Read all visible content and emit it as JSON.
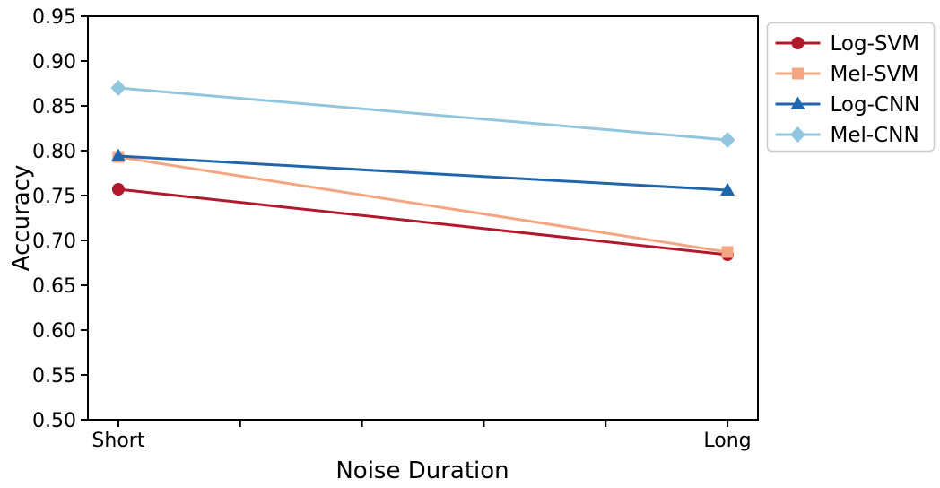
{
  "chart_data": {
    "type": "line",
    "title": "",
    "xlabel": "Noise Duration",
    "ylabel": "Accuracy",
    "categories": [
      "Short",
      "Long"
    ],
    "x_positions": [
      0,
      1
    ],
    "xlim": [
      -0.05,
      1.05
    ],
    "ylim": [
      0.5,
      0.95
    ],
    "xticks": [
      0,
      0.2,
      0.4,
      0.6,
      0.8,
      1.0
    ],
    "xtick_labels": [
      "Short",
      "",
      "",
      "",
      "",
      "Long"
    ],
    "yticks": [
      0.5,
      0.55,
      0.6,
      0.65,
      0.7,
      0.75,
      0.8,
      0.85,
      0.9,
      0.95
    ],
    "ytick_labels": [
      "0.50",
      "0.55",
      "0.60",
      "0.65",
      "0.70",
      "0.75",
      "0.80",
      "0.85",
      "0.90",
      "0.95"
    ],
    "grid": false,
    "frame": "full-box",
    "legend_position": "outside-upper-right",
    "series": [
      {
        "name": "Log-SVM",
        "color": "#b2182b",
        "marker": "circle",
        "values": [
          0.757,
          0.684
        ]
      },
      {
        "name": "Mel-SVM",
        "color": "#f4a582",
        "marker": "square",
        "values": [
          0.793,
          0.687
        ]
      },
      {
        "name": "Log-CNN",
        "color": "#2166ac",
        "marker": "triangle-up",
        "values": [
          0.794,
          0.756
        ]
      },
      {
        "name": "Mel-CNN",
        "color": "#92c5de",
        "marker": "diamond",
        "values": [
          0.87,
          0.812
        ]
      }
    ],
    "legend_entries": [
      "Log-SVM",
      "Mel-SVM",
      "Log-CNN",
      "Mel-CNN"
    ],
    "colors": {
      "axis": "#000000",
      "legend_border": "#cccccc",
      "background": "#ffffff"
    }
  }
}
